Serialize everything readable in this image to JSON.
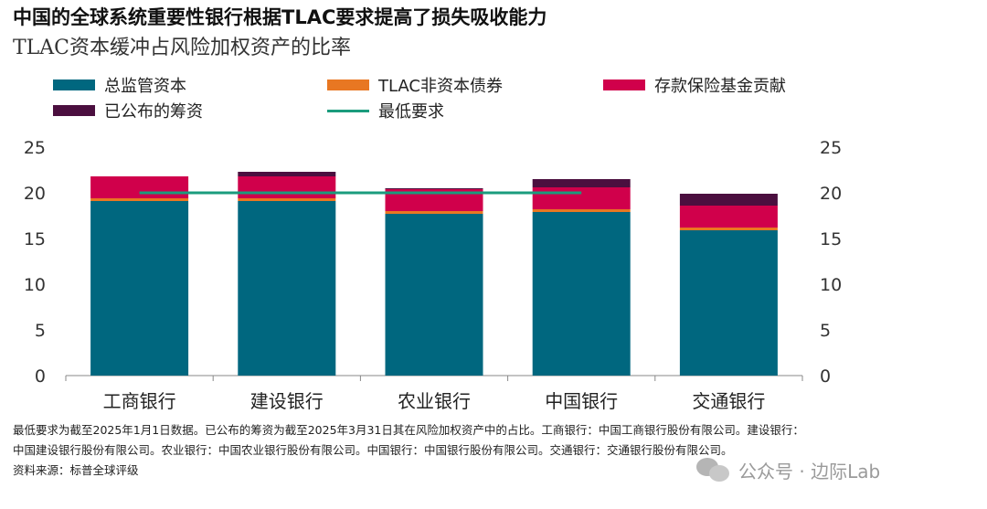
{
  "title": "中国的全球系统重要性银行根据TLAC要求提高了损失吸收能力",
  "subtitle": "TLAC资本缓冲占风险加权资产的比率",
  "colors": {
    "capital": "#00677F",
    "tlac_debt": "#E87722",
    "deposit_fund": "#D0004B",
    "announced": "#4B0F3F",
    "min_req": "#1A9C7D"
  },
  "chart_data": {
    "type": "bar",
    "stacked": true,
    "categories": [
      "工商银行",
      "建设银行",
      "农业银行",
      "中国银行",
      "交通银行"
    ],
    "series": [
      {
        "name": "总监管资本",
        "values": [
          19.1,
          19.1,
          17.7,
          17.9,
          15.9
        ]
      },
      {
        "name": "TLAC非资本债券",
        "values": [
          0.3,
          0.3,
          0.3,
          0.3,
          0.3
        ]
      },
      {
        "name": "存款保险基金贡献",
        "values": [
          2.4,
          2.4,
          2.4,
          2.4,
          2.4
        ]
      },
      {
        "name": "已公布的筹资",
        "values": [
          0.0,
          0.5,
          0.1,
          0.9,
          1.3
        ]
      }
    ],
    "min_requirement": {
      "name": "最低要求",
      "value": 20
    },
    "ylim": [
      0,
      25
    ],
    "yticks": [
      0,
      5,
      10,
      15,
      20,
      25
    ],
    "grid": false,
    "legend": "top"
  },
  "footnote": {
    "line1": "最低要求为截至2025年1月1日数据。已公布的筹资为截至2025年3月31日其在风险加权资产中的占比。工商银行：中国工商银行股份有限公司。建设银行：",
    "line2": "中国建设银行股份有限公司。农业银行：中国农业银行股份有限公司。中国银行：中国银行股份有限公司。交通银行：交通银行股份有限公司。",
    "line3": "资料来源：标普全球评级"
  },
  "watermark": "公众号 · 边际Lab"
}
